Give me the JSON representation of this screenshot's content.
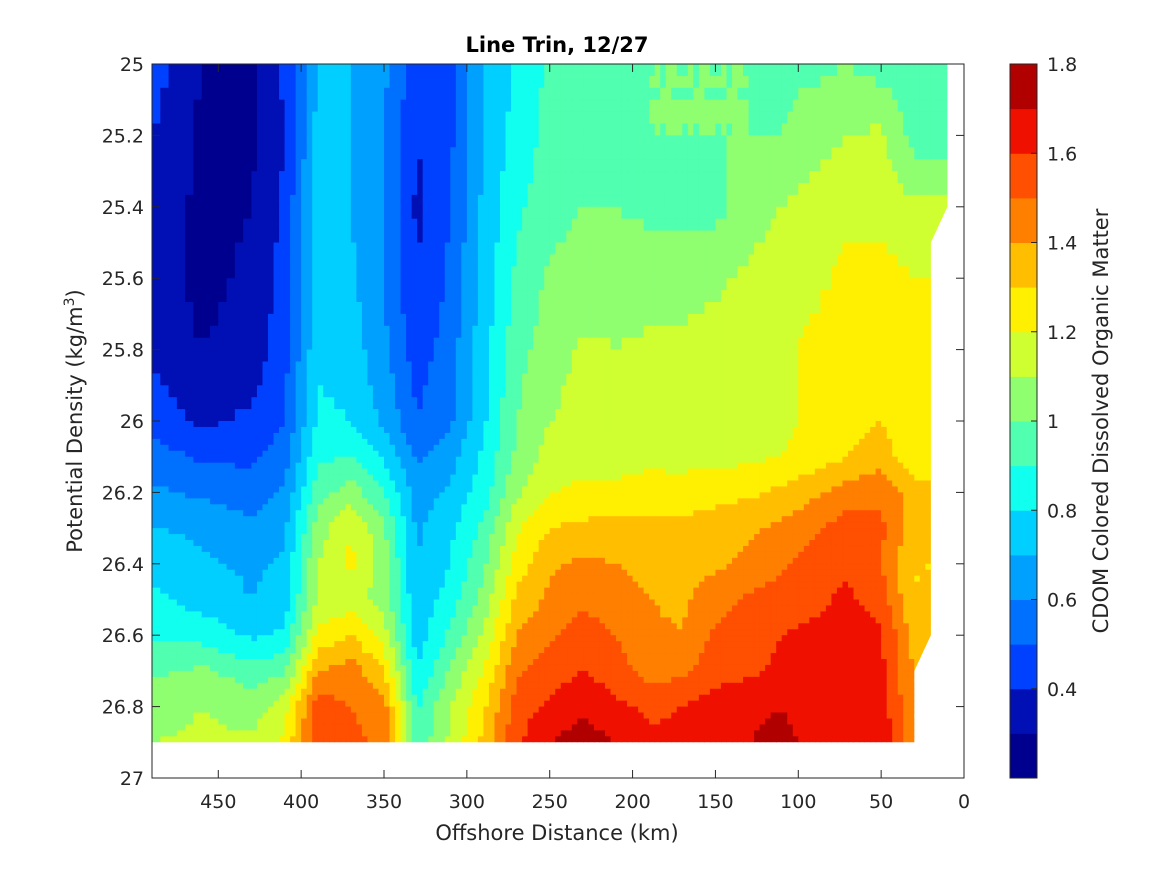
{
  "chart_data": {
    "type": "heatmap",
    "subtype": "filled-contour",
    "title": "Line Trin, 12/27",
    "xlabel": "Offshore Distance (km)",
    "ylabel": "Potential Density (kg/m",
    "ylabel_sup": "3",
    "ylabel_close": ")",
    "colorbar_label": "CDOM Colored Dissolved Organic Matter",
    "xlim": [
      490,
      0
    ],
    "x_reversed": true,
    "ylim": [
      25,
      27
    ],
    "y_reversed": true,
    "x_ticks": [
      450,
      400,
      350,
      300,
      250,
      200,
      150,
      100,
      50,
      0
    ],
    "y_ticks": [
      25,
      25.2,
      25.4,
      25.6,
      25.8,
      26,
      26.2,
      26.4,
      26.6,
      26.8,
      27
    ],
    "y_tick_labels": [
      "25",
      "25.2",
      "25.4",
      "25.6",
      "25.8",
      "26",
      "26.2",
      "26.4",
      "26.6",
      "26.8",
      "27"
    ],
    "colorbar_range": [
      0.2,
      1.8
    ],
    "colorbar_ticks": [
      "0.4",
      "0.6",
      "0.8",
      "1",
      "1.2",
      "1.4",
      "1.6",
      "1.8"
    ],
    "colorbar_tick_values": [
      0.4,
      0.6,
      0.8,
      1.0,
      1.2,
      1.4,
      1.6,
      1.8
    ],
    "levels": [
      0.2,
      0.3,
      0.4,
      0.5,
      0.6,
      0.7,
      0.8,
      0.9,
      1.0,
      1.1,
      1.2,
      1.3,
      1.4,
      1.5,
      1.6,
      1.7,
      1.8
    ],
    "level_colors": [
      "#00008f",
      "#0010b5",
      "#0040ff",
      "#0070ff",
      "#00a0ff",
      "#00cfff",
      "#10ffef",
      "#50ffaf",
      "#8fff70",
      "#cfff30",
      "#ffef00",
      "#ffbf00",
      "#ff7f00",
      "#ff4f00",
      "#ef1000",
      "#b00000"
    ],
    "grid": false,
    "data_x_range_km": [
      490,
      10
    ],
    "data_y_range": [
      25,
      26.9
    ],
    "x_nodes_km": [
      490,
      460,
      430,
      410,
      390,
      370,
      350,
      330,
      310,
      290,
      270,
      250,
      230,
      210,
      190,
      170,
      150,
      130,
      110,
      90,
      70,
      50,
      30,
      10
    ],
    "y_nodes": [
      25,
      25.2,
      25.4,
      25.6,
      25.8,
      26,
      26.1,
      26.2,
      26.3,
      26.4,
      26.5,
      26.6,
      26.7,
      26.8,
      26.9
    ],
    "cdom": [
      [
        0.45,
        0.3,
        0.28,
        0.42,
        0.72,
        0.7,
        0.62,
        0.45,
        0.48,
        0.7,
        0.82,
        0.92,
        0.95,
        0.98,
        1.0,
        1.0,
        1.0,
        1.0,
        0.98,
        0.98,
        1.0,
        0.95,
        0.95,
        0.95
      ],
      [
        0.4,
        0.28,
        0.28,
        0.4,
        0.73,
        0.7,
        0.6,
        0.4,
        0.48,
        0.7,
        0.84,
        0.93,
        0.96,
        0.98,
        1.0,
        1.0,
        1.0,
        1.0,
        1.0,
        1.05,
        1.1,
        1.12,
        0.95,
        0.95
      ],
      [
        0.38,
        0.27,
        0.3,
        0.42,
        0.75,
        0.7,
        0.6,
        0.38,
        0.5,
        0.72,
        0.88,
        0.96,
        1.0,
        1.0,
        0.98,
        0.96,
        0.97,
        1.05,
        1.1,
        1.15,
        1.18,
        1.15,
        1.12,
        1.12
      ],
      [
        0.36,
        0.27,
        0.32,
        0.44,
        0.76,
        0.72,
        0.6,
        0.4,
        0.52,
        0.74,
        0.92,
        1.02,
        1.04,
        1.05,
        1.05,
        1.06,
        1.08,
        1.12,
        1.15,
        1.18,
        1.22,
        1.25,
        1.2,
        1.2
      ],
      [
        0.38,
        0.3,
        0.34,
        0.46,
        0.78,
        0.76,
        0.62,
        0.45,
        0.55,
        0.76,
        0.96,
        1.05,
        1.12,
        1.1,
        1.12,
        1.12,
        1.15,
        1.15,
        1.18,
        1.22,
        1.26,
        1.3,
        1.22,
        1.22
      ],
      [
        0.45,
        0.38,
        0.42,
        0.5,
        0.82,
        0.8,
        0.68,
        0.5,
        0.58,
        0.78,
        1.0,
        1.1,
        1.14,
        1.14,
        1.15,
        1.14,
        1.15,
        1.16,
        1.18,
        1.22,
        1.26,
        1.3,
        1.22,
        1.22
      ],
      [
        0.55,
        0.48,
        0.48,
        0.55,
        0.88,
        0.9,
        0.78,
        0.58,
        0.66,
        0.82,
        1.02,
        1.14,
        1.16,
        1.16,
        1.17,
        1.16,
        1.17,
        1.18,
        1.2,
        1.25,
        1.3,
        1.35,
        1.22,
        1.22
      ],
      [
        0.62,
        0.58,
        0.55,
        0.62,
        0.95,
        1.05,
        0.9,
        0.65,
        0.72,
        0.85,
        1.08,
        1.2,
        1.22,
        1.22,
        1.25,
        1.25,
        1.26,
        1.28,
        1.32,
        1.38,
        1.45,
        1.48,
        1.35,
        1.35
      ],
      [
        0.7,
        0.68,
        0.62,
        0.68,
        1.05,
        1.2,
        1.02,
        0.68,
        0.78,
        0.92,
        1.18,
        1.3,
        1.32,
        1.35,
        1.32,
        1.32,
        1.36,
        1.38,
        1.42,
        1.48,
        1.55,
        1.52,
        1.35,
        1.35
      ],
      [
        0.78,
        0.72,
        0.68,
        0.72,
        1.1,
        1.22,
        1.05,
        0.7,
        0.8,
        0.98,
        1.25,
        1.38,
        1.42,
        1.4,
        1.36,
        1.35,
        1.38,
        1.42,
        1.48,
        1.55,
        1.58,
        1.5,
        1.3,
        1.3
      ],
      [
        0.82,
        0.76,
        0.7,
        0.75,
        1.12,
        1.15,
        1.05,
        0.72,
        0.85,
        1.04,
        1.32,
        1.42,
        1.48,
        1.45,
        1.4,
        1.38,
        1.46,
        1.52,
        1.55,
        1.58,
        1.62,
        1.55,
        1.3,
        1.3
      ],
      [
        0.88,
        0.86,
        0.78,
        0.82,
        1.22,
        1.3,
        1.15,
        0.75,
        0.92,
        1.12,
        1.4,
        1.48,
        1.55,
        1.5,
        1.42,
        1.4,
        1.52,
        1.55,
        1.6,
        1.62,
        1.65,
        1.62,
        1.35,
        1.35
      ],
      [
        0.98,
        1.02,
        0.95,
        0.98,
        1.4,
        1.45,
        1.3,
        0.8,
        1.02,
        1.2,
        1.48,
        1.55,
        1.6,
        1.55,
        1.45,
        1.48,
        1.56,
        1.58,
        1.62,
        1.65,
        1.68,
        1.62,
        1.4,
        1.4
      ],
      [
        1.05,
        1.1,
        1.05,
        1.15,
        1.55,
        1.5,
        1.45,
        0.88,
        1.1,
        1.28,
        1.55,
        1.62,
        1.68,
        1.62,
        1.58,
        1.6,
        1.65,
        1.68,
        1.7,
        1.66,
        1.66,
        1.65,
        1.4,
        1.4
      ],
      [
        1.1,
        1.12,
        1.12,
        1.22,
        1.58,
        1.52,
        1.48,
        0.92,
        1.12,
        1.32,
        1.58,
        1.7,
        1.75,
        1.7,
        1.62,
        1.62,
        1.68,
        1.7,
        1.72,
        1.68,
        1.66,
        1.7,
        1.4,
        1.4
      ]
    ],
    "mask_right_edge": [
      [
        25,
        10
      ],
      [
        25.4,
        10
      ],
      [
        25.5,
        20
      ],
      [
        26.6,
        20
      ],
      [
        26.7,
        30
      ],
      [
        26.9,
        30
      ]
    ]
  }
}
